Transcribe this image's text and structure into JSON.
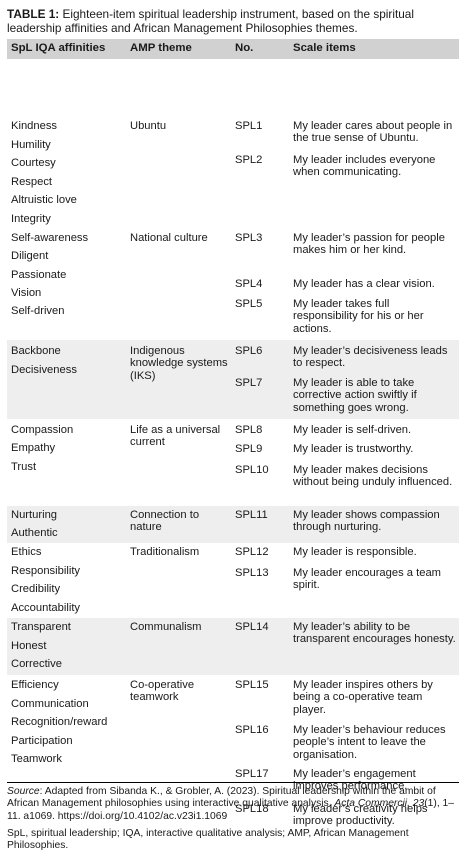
{
  "caption": {
    "label": "TABLE 1:",
    "text": " Eighteen-item spiritual leadership instrument, based on the spiritual leadership affinities and African Management Philosophies themes."
  },
  "headers": [
    "SpL IQA affinities",
    "AMP theme",
    "No.",
    "Scale items"
  ],
  "groups": [
    {
      "theme": "Ubuntu",
      "affinities": [
        "Kindness",
        "Humility",
        "Courtesy",
        "Respect",
        "Altruistic love",
        "Integrity"
      ],
      "items": [
        {
          "no": "SPL1",
          "text": "My leader cares about people in the true sense of Ubuntu."
        },
        {
          "no": "SPL2",
          "text": "My leader includes everyone when communicating."
        }
      ]
    },
    {
      "theme": "National culture",
      "affinities": [
        "Self-awareness",
        "Diligent",
        "Passionate",
        "Vision",
        "Self-driven"
      ],
      "items": [
        {
          "no": "SPL3",
          "text": "My leader’s passion for people makes him or her kind."
        },
        {
          "no": "SPL4",
          "text": "My leader has a clear vision."
        },
        {
          "no": "SPL5",
          "text": "My leader takes full responsibility for his or her actions."
        }
      ]
    },
    {
      "theme": "Indigenous knowledge systems (IKS)",
      "affinities": [
        "Backbone",
        "Decisiveness"
      ],
      "items": [
        {
          "no": "SPL6",
          "text": "My leader’s decisiveness leads to respect."
        },
        {
          "no": "SPL7",
          "text": "My leader is able to take corrective action swiftly if something goes wrong."
        }
      ]
    },
    {
      "theme": "Life as a universal current",
      "affinities": [
        "Compassion",
        "Empathy",
        "Trust"
      ],
      "items": [
        {
          "no": "SPL8",
          "text": "My leader is self-driven."
        },
        {
          "no": "SPL9",
          "text": "My leader is trustworthy."
        },
        {
          "no": "SPL10",
          "text": "My leader makes decisions without being unduly influenced."
        }
      ]
    },
    {
      "theme": "Connection to nature",
      "affinities": [
        "Nurturing",
        "Authentic"
      ],
      "items": [
        {
          "no": "SPL11",
          "text": "My leader shows compassion through nurturing."
        }
      ]
    },
    {
      "theme": "Traditionalism",
      "affinities": [
        "Ethics",
        "Responsibility",
        "Credibility",
        "Accountability"
      ],
      "items": [
        {
          "no": "SPL12",
          "text": "My leader is responsible."
        },
        {
          "no": "SPL13",
          "text": "My leader encourages a team spirit."
        }
      ]
    },
    {
      "theme": "Communalism",
      "affinities": [
        "Transparent",
        "Honest",
        "Corrective"
      ],
      "items": [
        {
          "no": "SPL14",
          "text": "My leader’s ability to be transparent encourages honesty."
        }
      ]
    },
    {
      "theme": "Co-operative teamwork",
      "affinities": [
        "Efficiency",
        "Communication",
        "Recognition/reward",
        "Participation",
        "Teamwork"
      ],
      "items": [
        {
          "no": "SPL15",
          "text": "My leader inspires others by being a co-operative team player."
        },
        {
          "no": "SPL16",
          "text": "My leader’s behaviour reduces people’s intent to leave the organisation."
        },
        {
          "no": "SPL17",
          "text": "My leader’s engagement improves performance."
        },
        {
          "no": "SPL18",
          "text": "My leader’s creativity helps improve productivity."
        }
      ]
    }
  ],
  "source": {
    "label": "Source",
    "pre": ": Adapted from Sibanda K., & Grobler, A. (2023). Spiritual leadership within the ambit of African Management philosophies using interactive qualitative analysis. ",
    "journal": "Acta Commercii, 23",
    "post": "(1), 1–11. a1069. https://doi.org/10.4102/ac.v23i1.1069"
  },
  "abbreviations": "SpL, spiritual leadership; IQA, interactive qualitative analysis; AMP, African Management Philosophies.",
  "colors": {
    "header_bg": "#d1d1d1",
    "shaded_row_bg": "#eeeeee",
    "text": "#1a1a1a"
  }
}
